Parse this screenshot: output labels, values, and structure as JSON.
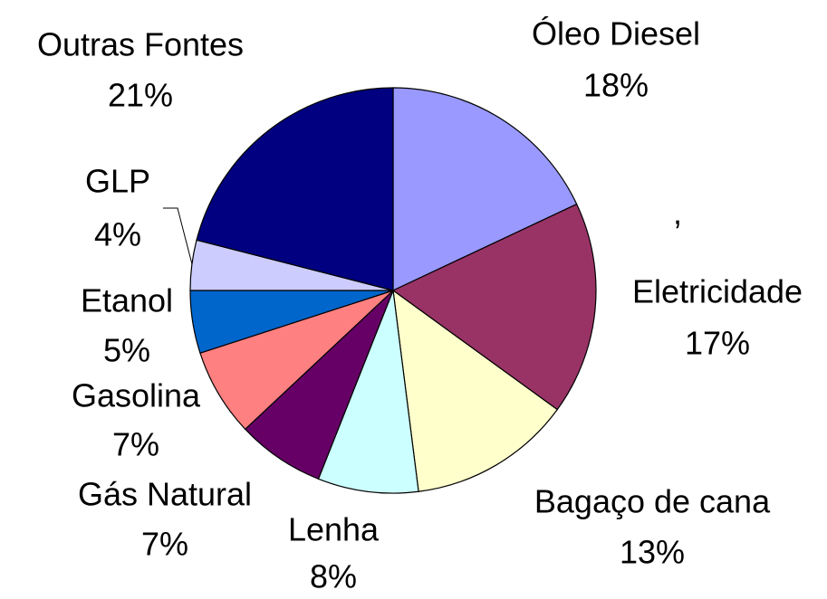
{
  "chart_data": {
    "type": "pie",
    "categories": [
      "Óleo Diesel",
      "Eletricidade",
      "Bagaço de cana",
      "Lenha",
      "Gás Natural",
      "Gasolina",
      "Etanol",
      "GLP",
      "Outras Fontes"
    ],
    "values": [
      18,
      17,
      13,
      8,
      7,
      7,
      5,
      4,
      21
    ],
    "value_labels": [
      "18%",
      "17%",
      "13%",
      "8%",
      "7%",
      "7%",
      "5%",
      "4%",
      "21%"
    ],
    "colors": [
      "#9999ff",
      "#993366",
      "#ffffcc",
      "#ccffff",
      "#660066",
      "#ff8080",
      "#0066cc",
      "#ccccff",
      "#000080"
    ],
    "annotation": ","
  }
}
